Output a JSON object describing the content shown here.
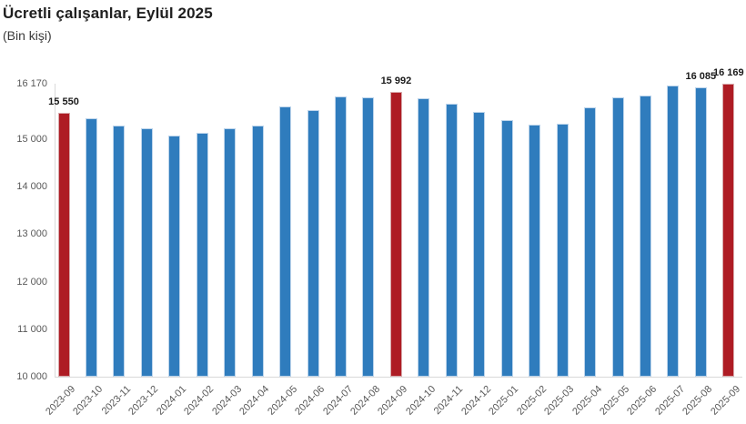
{
  "chart_data": {
    "type": "bar",
    "title": "Ücretli çalışanlar, Eylül 2025",
    "subtitle": "(Bin kişi)",
    "categories": [
      "2023-09",
      "2023-10",
      "2023-11",
      "2023-12",
      "2024-01",
      "2024-02",
      "2024-03",
      "2024-04",
      "2024-05",
      "2024-06",
      "2024-07",
      "2024-08",
      "2024-09",
      "2024-10",
      "2024-11",
      "2024-12",
      "2025-01",
      "2025-02",
      "2025-03",
      "2025-04",
      "2025-05",
      "2025-06",
      "2025-07",
      "2025-08",
      "2025-09"
    ],
    "values": [
      15550,
      15440,
      15290,
      15240,
      15070,
      15130,
      15230,
      15290,
      15700,
      15610,
      15910,
      15880,
      15992,
      15860,
      15740,
      15580,
      15410,
      15300,
      15330,
      15670,
      15890,
      15930,
      16125,
      16085,
      16169
    ],
    "highlight_indices": [
      0,
      12,
      24
    ],
    "data_labels": {
      "0": "15 550",
      "12": "15 992",
      "23": "16 085",
      "24": "16 169"
    },
    "y_axis": {
      "range": [
        10000,
        16170
      ],
      "ticks": [
        {
          "value": 16170,
          "label": "16 170"
        },
        {
          "value": 15000,
          "label": "15 000"
        },
        {
          "value": 14000,
          "label": "14 000"
        },
        {
          "value": 13000,
          "label": "13 000"
        },
        {
          "value": 12000,
          "label": "12 000"
        },
        {
          "value": 11000,
          "label": "11 000"
        },
        {
          "value": 10000,
          "label": "10 000"
        }
      ]
    },
    "grid": false,
    "legend": "none",
    "colors": {
      "bar": "#2F7CBD",
      "bar_border": "#BCD4EB",
      "highlight": "#AE1C24",
      "highlight_border": "#D8A9AB",
      "axis_line": "#D9D9D9",
      "axis_text": "#595959",
      "label_text": "#1A1A1A"
    }
  }
}
